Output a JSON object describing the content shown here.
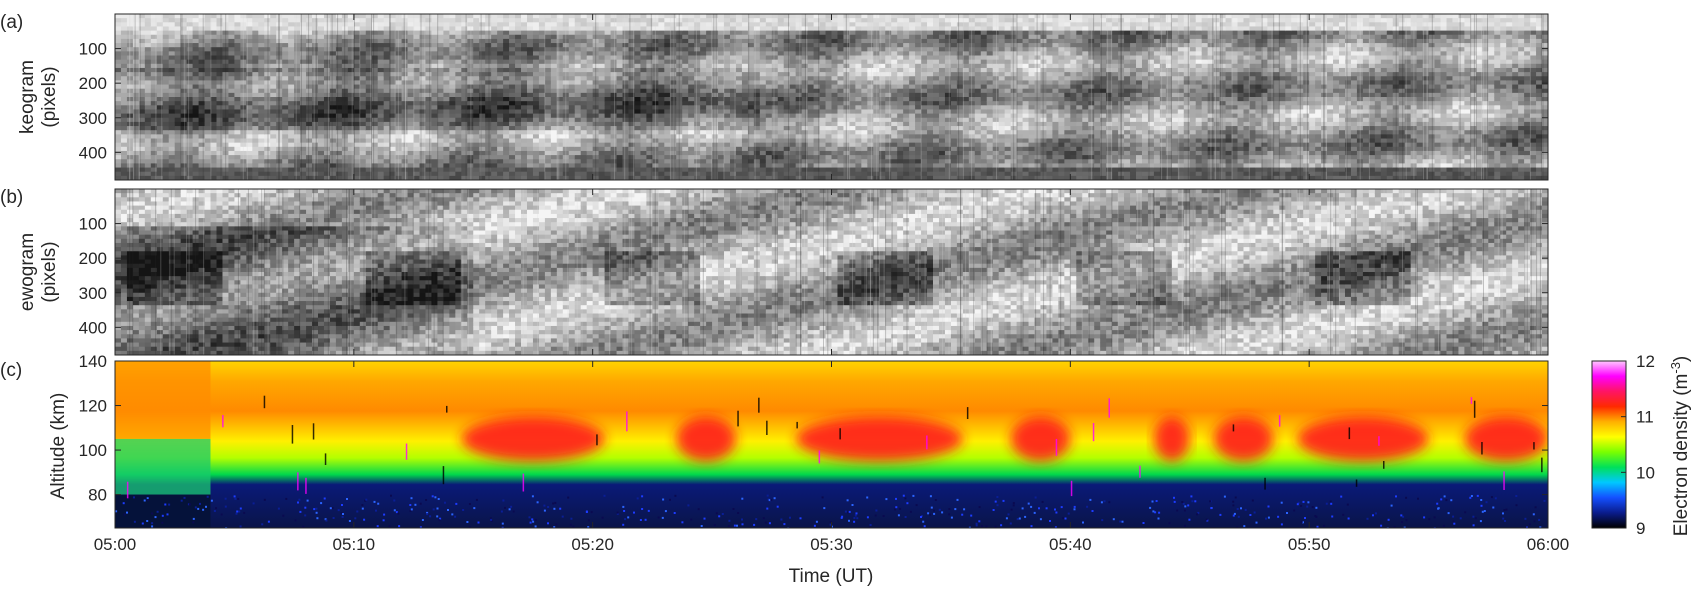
{
  "chart_data": [
    {
      "panel": "(a)",
      "type": "heatmap",
      "ylabel_line1": "keogram",
      "ylabel_line2": "(pixels)",
      "yticks": [
        100,
        200,
        300,
        400
      ],
      "ylim": [
        0,
        480
      ],
      "y_reversed": true,
      "xlim": [
        "05:00",
        "06:00"
      ],
      "colormap": "grayscale"
    },
    {
      "panel": "(b)",
      "type": "heatmap",
      "ylabel_line1": "ewogram",
      "ylabel_line2": "(pixels)",
      "yticks": [
        100,
        200,
        300,
        400
      ],
      "ylim": [
        0,
        480
      ],
      "y_reversed": true,
      "xlim": [
        "05:00",
        "06:00"
      ],
      "colormap": "grayscale"
    },
    {
      "panel": "(c)",
      "type": "heatmap",
      "ylabel": "Altitude (km)",
      "yticks": [
        80,
        100,
        120,
        140
      ],
      "ylim": [
        65,
        140
      ],
      "xlabel": "Time (UT)",
      "xticks": [
        "05:00",
        "05:10",
        "05:20",
        "05:30",
        "05:40",
        "05:50",
        "06:00"
      ],
      "xtick_minutes": [
        0,
        10,
        20,
        30,
        40,
        50,
        60
      ],
      "xlim_minutes": [
        0,
        60
      ],
      "colormap": "hsv-like (black-blue-green-yellow-red-magenta)",
      "colorbar": {
        "label": "Electron density (m",
        "label_sup": "-3",
        "label_close": ")",
        "ticks": [
          9,
          10,
          11,
          12
        ],
        "range": [
          9,
          12
        ],
        "stops": [
          "#000000",
          "#0a1c8c",
          "#1450ff",
          "#00c8ff",
          "#00e05a",
          "#7aff00",
          "#ffff00",
          "#ffb000",
          "#ff2a00",
          "#ff1464",
          "#ff00ff",
          "#ffc8ff"
        ]
      },
      "approx_profile": {
        "lower_cutoff_km": 80,
        "red_patch_times_min": [
          [
            14.5,
            20.5
          ],
          [
            23.5,
            26
          ],
          [
            28.5,
            35.5
          ],
          [
            37.5,
            40
          ],
          [
            43.5,
            45
          ],
          [
            46,
            48.5
          ],
          [
            49.5,
            55
          ],
          [
            56.5,
            60
          ]
        ],
        "red_patch_altitude_km": [
          95,
          115
        ]
      }
    }
  ]
}
